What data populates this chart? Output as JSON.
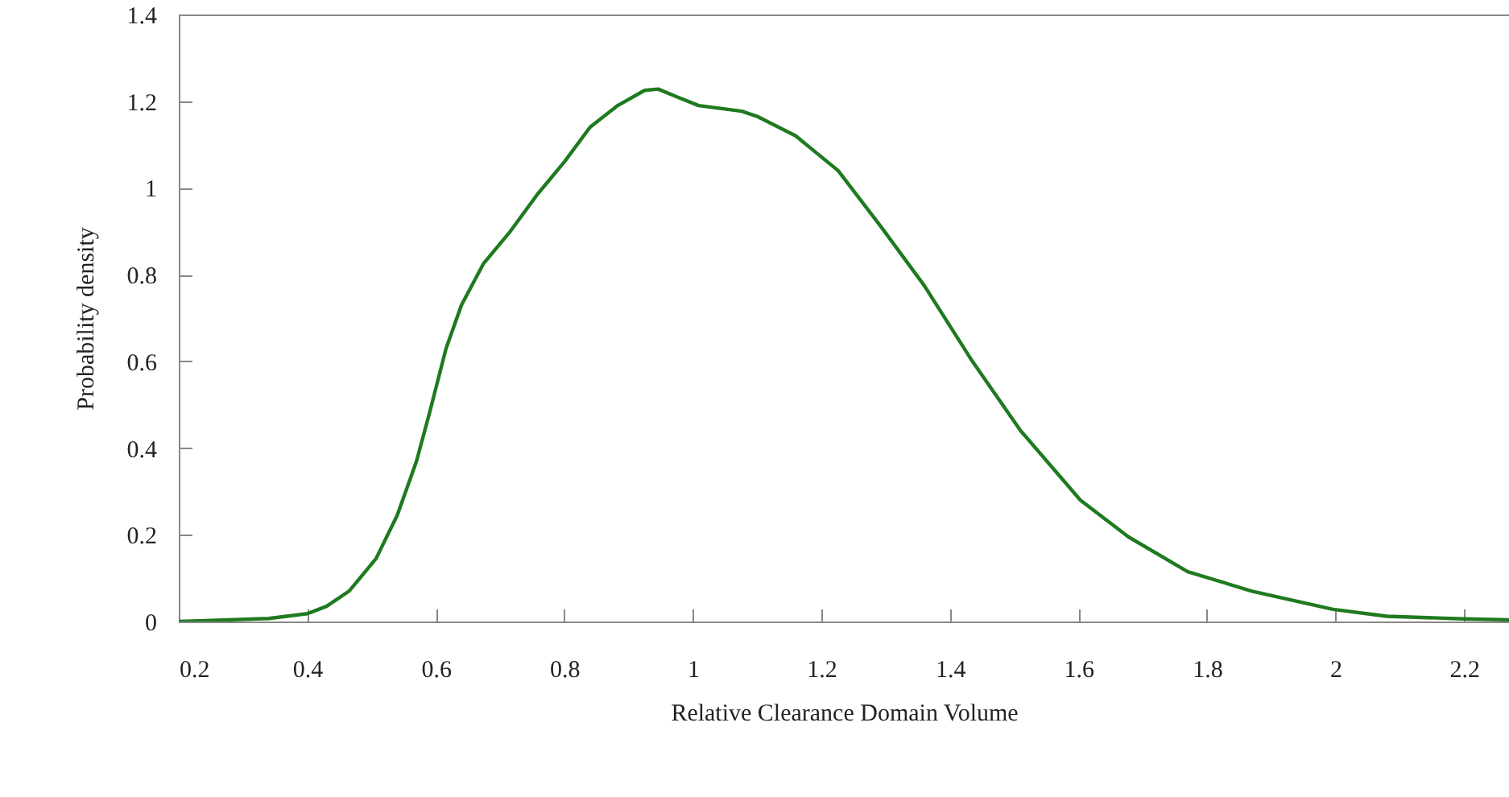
{
  "chart_data": {
    "type": "line",
    "xlabel": "Relative Clearance Domain Volume",
    "ylabel": "Probability density",
    "xlim": [
      0.2,
      2.27
    ],
    "xticks": [
      0.2,
      0.4,
      0.6,
      0.8,
      1,
      1.2,
      1.4,
      1.6,
      1.8,
      2,
      2.2
    ],
    "ylim": [
      0,
      1.4
    ],
    "yticks": [
      0,
      0.2,
      0.4,
      0.6,
      0.8,
      1,
      1.2,
      1.4
    ],
    "grid": false,
    "marker": "none",
    "line_style": "solid",
    "x": [
      0.2,
      0.34,
      0.4,
      0.43,
      0.465,
      0.507,
      0.54,
      0.57,
      0.59,
      0.616,
      0.64,
      0.674,
      0.716,
      0.758,
      0.8,
      0.84,
      0.883,
      0.925,
      0.946,
      0.975,
      1.009,
      1.076,
      1.1,
      1.16,
      1.226,
      1.293,
      1.36,
      1.435,
      1.51,
      1.603,
      1.678,
      1.77,
      1.87,
      1.996,
      2.08,
      2.2,
      2.27
    ],
    "series": [
      {
        "color": "#1f7a1f",
        "values": [
          0,
          0.007,
          0.018,
          0.035,
          0.07,
          0.145,
          0.245,
          0.37,
          0.48,
          0.63,
          0.73,
          0.825,
          0.9,
          0.985,
          1.06,
          1.14,
          1.19,
          1.225,
          1.228,
          1.21,
          1.19,
          1.177,
          1.165,
          1.12,
          1.04,
          0.91,
          0.775,
          0.6,
          0.44,
          0.28,
          0.195,
          0.115,
          0.07,
          0.028,
          0.012,
          0.006,
          0.004
        ]
      }
    ]
  }
}
